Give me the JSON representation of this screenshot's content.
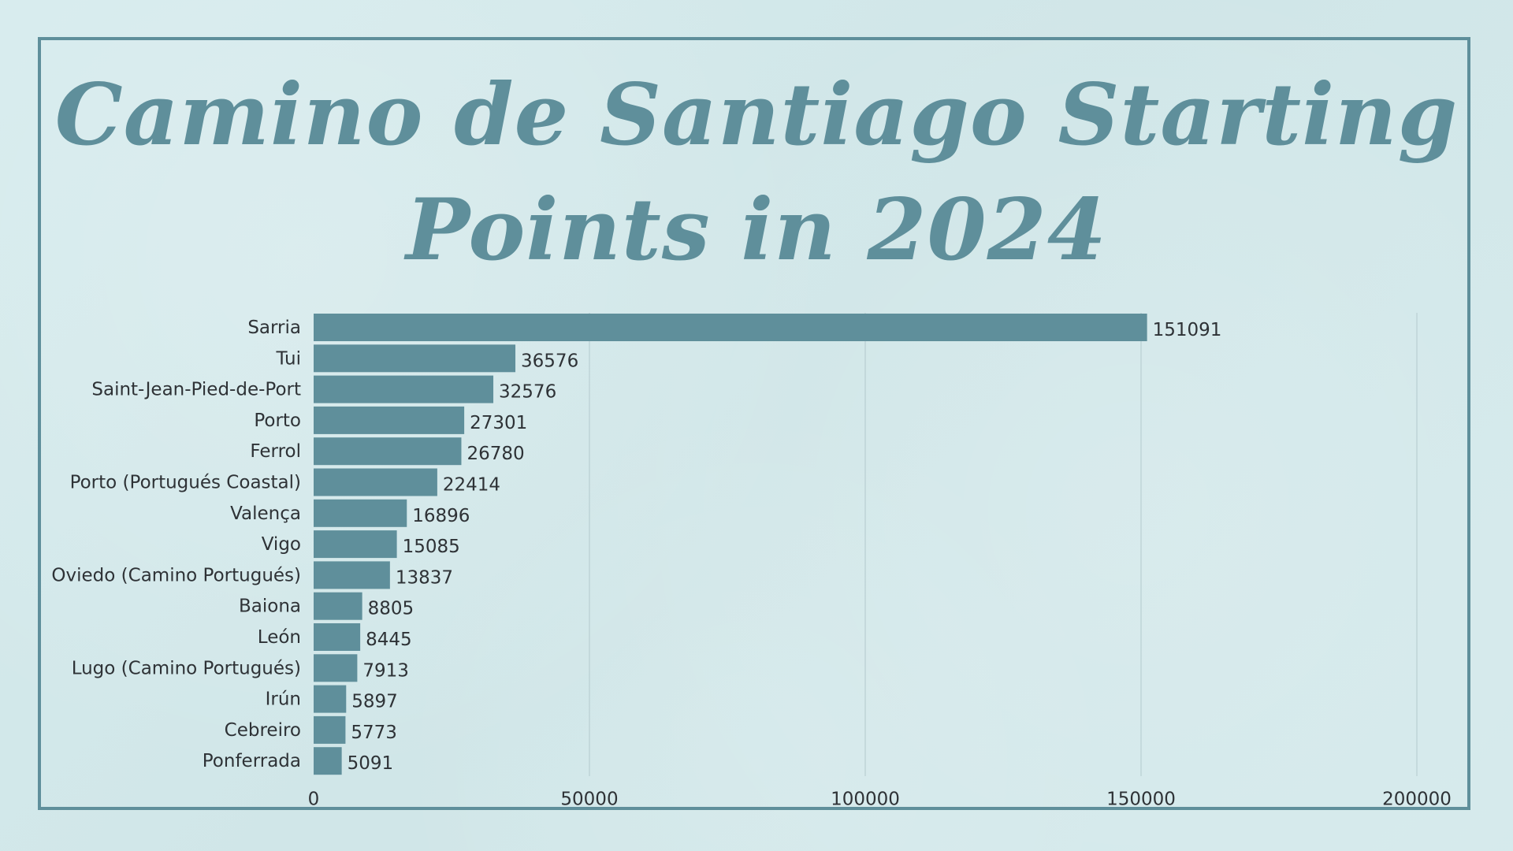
{
  "colors": {
    "background": "#d3e8ea",
    "accent": "#5f8f9b",
    "bar": "#5f8f9b",
    "gridline": "#b3c9cd",
    "text": "#2e3236"
  },
  "title": {
    "line1": "Camino de Santiago Starting",
    "line2": "Points in 2024"
  },
  "chart_data": {
    "type": "bar",
    "orientation": "horizontal",
    "title": "Camino de Santiago Starting Points in 2024",
    "categories": [
      "Sarria",
      "Tui",
      "Saint-Jean-Pied-de-Port",
      "Porto",
      "Ferrol",
      "Porto (Portugués Coastal)",
      "Valença",
      "Vigo",
      "Oviedo (Camino Portugués)",
      "Baiona",
      "León",
      "Lugo (Camino Portugués)",
      "Irún",
      "Cebreiro",
      "Ponferrada"
    ],
    "values": [
      151091,
      36576,
      32576,
      27301,
      26780,
      22414,
      16896,
      15085,
      13837,
      8805,
      8445,
      7913,
      5897,
      5773,
      5091
    ],
    "xlim": [
      0,
      200000
    ],
    "xticks": [
      0,
      50000,
      100000,
      150000,
      200000
    ],
    "xtick_labels": [
      "0",
      "50000",
      "100000",
      "150000",
      "200000"
    ],
    "xlabel": "",
    "ylabel": "",
    "grid": true,
    "data_labels": true
  }
}
